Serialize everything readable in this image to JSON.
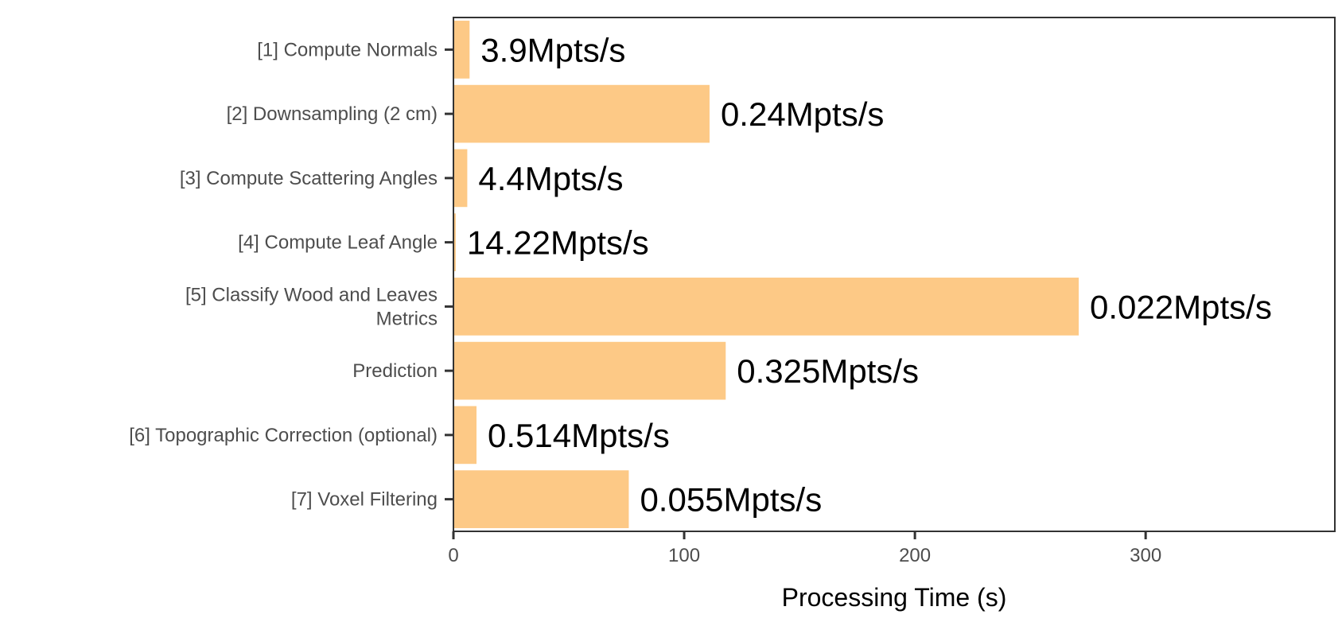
{
  "chart_data": {
    "type": "bar",
    "orientation": "horizontal",
    "title": "",
    "xlabel": "Processing Time (s)",
    "ylabel": "",
    "xlim": [
      0,
      382
    ],
    "xticks": [
      0,
      100,
      200,
      300
    ],
    "xtick_labels": [
      "0",
      "100",
      "200",
      "300"
    ],
    "grid": false,
    "bar_color": "#FDC986",
    "categories": [
      [
        "[1] Compute Normals"
      ],
      [
        "[2] Downsampling (2 cm)"
      ],
      [
        "[3] Compute Scattering Angles"
      ],
      [
        "[4] Compute Leaf Angle"
      ],
      [
        "[5] Classify Wood and Leaves",
        "Metrics"
      ],
      [
        "Prediction"
      ],
      [
        "[6] Topographic Correction (optional)"
      ],
      [
        "[7] Voxel Filtering"
      ]
    ],
    "values": [
      7,
      111,
      6,
      1,
      271,
      118,
      10,
      76
    ],
    "data_labels": [
      "3.9Mpts/s",
      "0.24Mpts/s",
      "4.4Mpts/s",
      "14.22Mpts/s",
      "0.022Mpts/s",
      "0.325Mpts/s",
      "0.514Mpts/s",
      "0.055Mpts/s"
    ]
  }
}
